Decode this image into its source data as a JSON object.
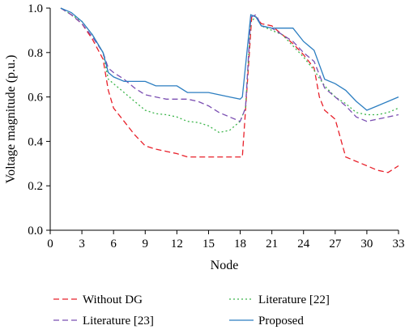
{
  "chart_data": {
    "type": "line",
    "title": "",
    "xlabel": "Node",
    "ylabel": "Voltage magnitude (p.u.)",
    "xlim": [
      0,
      33
    ],
    "ylim": [
      0,
      1.0
    ],
    "xticks": [
      "0",
      "3",
      "6",
      "9",
      "12",
      "15",
      "18",
      "21",
      "24",
      "27",
      "30",
      "33"
    ],
    "yticks": [
      "0.0",
      "0.2",
      "0.4",
      "0.6",
      "0.8",
      "1.0"
    ],
    "grid": false,
    "legend_position": "bottom",
    "series": [
      {
        "name": "Without DG",
        "color": "#e8202a",
        "dash": "dashed",
        "points": [
          [
            1,
            1.0
          ],
          [
            2,
            0.97
          ],
          [
            3,
            0.93
          ],
          [
            4,
            0.86
          ],
          [
            5,
            0.77
          ],
          [
            5.5,
            0.63
          ],
          [
            6,
            0.55
          ],
          [
            7,
            0.49
          ],
          [
            8,
            0.43
          ],
          [
            9,
            0.38
          ],
          [
            10,
            0.365
          ],
          [
            11,
            0.355
          ],
          [
            12,
            0.345
          ],
          [
            13,
            0.33
          ],
          [
            14,
            0.33
          ],
          [
            15,
            0.33
          ],
          [
            16,
            0.33
          ],
          [
            17,
            0.33
          ],
          [
            18,
            0.33
          ],
          [
            18.2,
            0.33
          ],
          [
            18.8,
            0.75
          ],
          [
            19.1,
            0.97
          ],
          [
            19.5,
            0.96
          ],
          [
            20,
            0.93
          ],
          [
            21,
            0.92
          ],
          [
            22,
            0.88
          ],
          [
            23,
            0.84
          ],
          [
            24,
            0.79
          ],
          [
            25,
            0.73
          ],
          [
            25.5,
            0.6
          ],
          [
            26,
            0.54
          ],
          [
            27,
            0.5
          ],
          [
            28,
            0.33
          ],
          [
            29,
            0.31
          ],
          [
            30,
            0.29
          ],
          [
            31,
            0.27
          ],
          [
            32,
            0.26
          ],
          [
            33,
            0.29
          ]
        ]
      },
      {
        "name": "Literature [22]",
        "color": "#3bb54a",
        "dash": "dotted",
        "points": [
          [
            1,
            1.0
          ],
          [
            2,
            0.97
          ],
          [
            3,
            0.94
          ],
          [
            4,
            0.88
          ],
          [
            5,
            0.8
          ],
          [
            5.5,
            0.68
          ],
          [
            6,
            0.66
          ],
          [
            7,
            0.62
          ],
          [
            8,
            0.58
          ],
          [
            9,
            0.54
          ],
          [
            10,
            0.525
          ],
          [
            11,
            0.52
          ],
          [
            12,
            0.51
          ],
          [
            13,
            0.49
          ],
          [
            14,
            0.485
          ],
          [
            15,
            0.47
          ],
          [
            16,
            0.44
          ],
          [
            17,
            0.45
          ],
          [
            18,
            0.49
          ],
          [
            18.5,
            0.55
          ],
          [
            19,
            0.94
          ],
          [
            19.5,
            0.96
          ],
          [
            20,
            0.92
          ],
          [
            21,
            0.9
          ],
          [
            22,
            0.88
          ],
          [
            23,
            0.83
          ],
          [
            24,
            0.78
          ],
          [
            25,
            0.72
          ],
          [
            26,
            0.65
          ],
          [
            27,
            0.6
          ],
          [
            28,
            0.57
          ],
          [
            29,
            0.53
          ],
          [
            30,
            0.52
          ],
          [
            31,
            0.52
          ],
          [
            32,
            0.53
          ],
          [
            33,
            0.55
          ]
        ]
      },
      {
        "name": "Literature [23]",
        "color": "#7b4fb2",
        "dash": "dashed",
        "points": [
          [
            1,
            1.0
          ],
          [
            2,
            0.97
          ],
          [
            3,
            0.93
          ],
          [
            4,
            0.87
          ],
          [
            5,
            0.8
          ],
          [
            5.5,
            0.73
          ],
          [
            6,
            0.71
          ],
          [
            7,
            0.68
          ],
          [
            8,
            0.64
          ],
          [
            9,
            0.61
          ],
          [
            10,
            0.6
          ],
          [
            11,
            0.59
          ],
          [
            12,
            0.59
          ],
          [
            13,
            0.59
          ],
          [
            14,
            0.58
          ],
          [
            15,
            0.56
          ],
          [
            16,
            0.53
          ],
          [
            17,
            0.51
          ],
          [
            18,
            0.49
          ],
          [
            18.5,
            0.55
          ],
          [
            19,
            0.96
          ],
          [
            19.5,
            0.97
          ],
          [
            20,
            0.92
          ],
          [
            21,
            0.91
          ],
          [
            22,
            0.88
          ],
          [
            23,
            0.85
          ],
          [
            24,
            0.8
          ],
          [
            25,
            0.76
          ],
          [
            26,
            0.64
          ],
          [
            27,
            0.6
          ],
          [
            28,
            0.56
          ],
          [
            29,
            0.51
          ],
          [
            30,
            0.49
          ],
          [
            31,
            0.5
          ],
          [
            32,
            0.51
          ],
          [
            33,
            0.52
          ]
        ]
      },
      {
        "name": "Proposed",
        "color": "#2c7ec1",
        "dash": "solid",
        "points": [
          [
            1,
            1.0
          ],
          [
            2,
            0.98
          ],
          [
            3,
            0.94
          ],
          [
            4,
            0.88
          ],
          [
            5,
            0.8
          ],
          [
            5.5,
            0.71
          ],
          [
            6,
            0.69
          ],
          [
            7,
            0.67
          ],
          [
            8,
            0.67
          ],
          [
            9,
            0.67
          ],
          [
            10,
            0.65
          ],
          [
            11,
            0.65
          ],
          [
            12,
            0.65
          ],
          [
            13,
            0.62
          ],
          [
            14,
            0.62
          ],
          [
            15,
            0.62
          ],
          [
            16,
            0.61
          ],
          [
            17,
            0.6
          ],
          [
            18,
            0.59
          ],
          [
            18.2,
            0.6
          ],
          [
            19,
            0.97
          ],
          [
            19.5,
            0.96
          ],
          [
            20,
            0.92
          ],
          [
            21,
            0.91
          ],
          [
            22,
            0.91
          ],
          [
            23,
            0.91
          ],
          [
            24,
            0.85
          ],
          [
            25,
            0.81
          ],
          [
            26,
            0.68
          ],
          [
            27,
            0.66
          ],
          [
            28,
            0.63
          ],
          [
            29,
            0.58
          ],
          [
            30,
            0.54
          ],
          [
            31,
            0.56
          ],
          [
            32,
            0.58
          ],
          [
            33,
            0.6
          ]
        ]
      }
    ]
  }
}
